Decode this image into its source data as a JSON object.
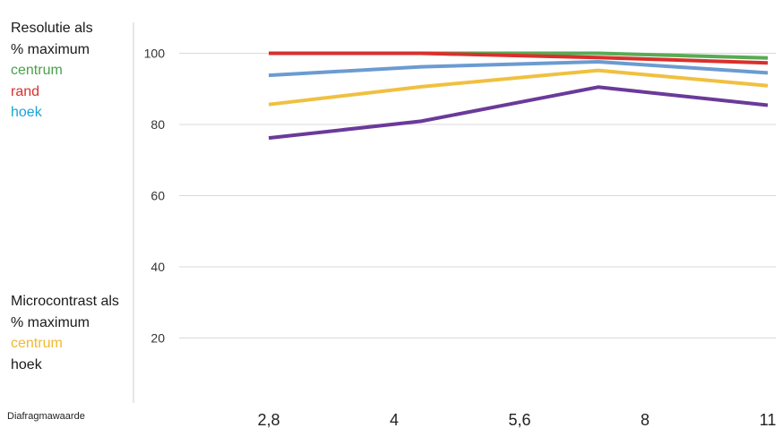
{
  "chart_data": {
    "type": "line",
    "xlabel": "Diafragmawaarde",
    "categories": [
      "2,8",
      "4",
      "5,6",
      "8",
      "11"
    ],
    "ylim": [
      0,
      100
    ],
    "yticks": [
      20,
      40,
      60,
      80,
      100
    ],
    "grid": true,
    "legend_resolution": {
      "title_lines": [
        "Resolutie als",
        "% maximum"
      ],
      "entries": [
        {
          "label": "centrum",
          "color": "#4aa04a"
        },
        {
          "label": "rand",
          "color": "#d9302c"
        },
        {
          "label": "hoek",
          "color": "#1ba3d6"
        }
      ]
    },
    "legend_microcontrast": {
      "title_lines": [
        "Microcontrast als",
        "% maximum"
      ],
      "entries": [
        {
          "label": "centrum",
          "color": "#f0b830"
        },
        {
          "label": "hoek",
          "color": "#1a1a1a"
        }
      ]
    },
    "series": [
      {
        "color": "#5aaa55",
        "points": [
          [
            2.8,
            100
          ],
          [
            4.3,
            100
          ],
          [
            7.0,
            100
          ],
          [
            11,
            98.7
          ]
        ]
      },
      {
        "color": "#d9302c",
        "points": [
          [
            2.8,
            100
          ],
          [
            4.3,
            100
          ],
          [
            7.0,
            98.8
          ],
          [
            11,
            97.3
          ]
        ]
      },
      {
        "color": "#6b9bd1",
        "points": [
          [
            2.8,
            93.8
          ],
          [
            4.3,
            96.2
          ],
          [
            7.0,
            97.6
          ],
          [
            11,
            94.5
          ]
        ]
      },
      {
        "color": "#f0c040",
        "points": [
          [
            2.8,
            85.6
          ],
          [
            4.3,
            90.6
          ],
          [
            7.0,
            95.2
          ],
          [
            11,
            90.9
          ]
        ]
      },
      {
        "color": "#6a3a9a",
        "points": [
          [
            2.8,
            76.2
          ],
          [
            4.3,
            80.9
          ],
          [
            7.0,
            90.5
          ],
          [
            11,
            85.4
          ]
        ]
      }
    ]
  }
}
